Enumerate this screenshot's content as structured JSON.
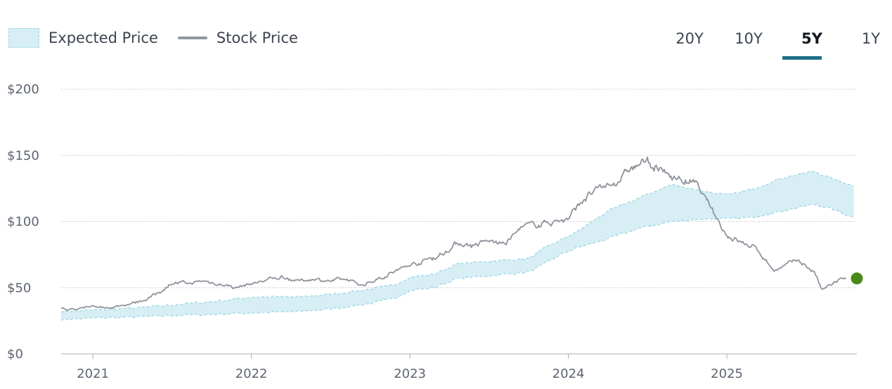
{
  "legend": {
    "expected_label": "Expected Price",
    "stock_label": "Stock Price"
  },
  "range_tabs": [
    "20Y",
    "10Y",
    "5Y",
    "1Y"
  ],
  "active_range": "5Y",
  "colors": {
    "band_fill": "#d6eef4",
    "band_edge": "#9dd6e3",
    "stock_line": "#8f949c",
    "grid": "#c9ccd1",
    "current_marker": "#4a8a1c",
    "tab_underline": "#1d6f86"
  },
  "chart_data": {
    "type": "area",
    "title": "",
    "xlabel": "",
    "ylabel": "",
    "x_range": [
      2020.8,
      2025.82
    ],
    "ylim": [
      0,
      200
    ],
    "y_ticks": [
      0,
      50,
      100,
      150,
      200
    ],
    "y_tick_labels": [
      "$0",
      "$50",
      "$100",
      "$150",
      "$200"
    ],
    "x_ticks": [
      2021,
      2022,
      2023,
      2024,
      2025
    ],
    "x_tick_labels": [
      "2021",
      "2022",
      "2023",
      "2024",
      "2025"
    ],
    "grid": true,
    "legend_position": "top-left",
    "series": [
      {
        "name": "Expected Price",
        "kind": "band",
        "x": [
          2020.8,
          2021.0,
          2021.3,
          2021.5,
          2021.8,
          2022.0,
          2022.3,
          2022.5,
          2022.75,
          2022.9,
          2023.0,
          2023.15,
          2023.3,
          2023.5,
          2023.75,
          2023.85,
          2023.95,
          2024.05,
          2024.25,
          2024.45,
          2024.65,
          2024.85,
          2025.0,
          2025.15,
          2025.35,
          2025.55,
          2025.65,
          2025.8
        ],
        "lower": [
          26,
          27,
          28,
          29,
          30,
          31,
          32,
          34,
          38,
          42,
          48,
          50,
          57,
          59,
          62,
          68,
          75,
          80,
          87,
          95,
          100,
          102,
          102,
          103,
          108,
          113,
          110,
          103
        ],
        "upper": [
          32,
          33,
          35,
          37,
          40,
          43,
          43,
          45,
          49,
          52,
          58,
          60,
          68,
          70,
          72,
          80,
          86,
          92,
          108,
          118,
          128,
          123,
          120,
          124,
          133,
          138,
          133,
          127
        ]
      },
      {
        "name": "Stock Price",
        "kind": "line",
        "x": [
          2020.8,
          2020.9,
          2021.0,
          2021.1,
          2021.2,
          2021.3,
          2021.4,
          2021.5,
          2021.6,
          2021.7,
          2021.8,
          2021.9,
          2022.0,
          2022.1,
          2022.2,
          2022.3,
          2022.4,
          2022.5,
          2022.6,
          2022.7,
          2022.8,
          2022.9,
          2023.0,
          2023.1,
          2023.2,
          2023.3,
          2023.4,
          2023.5,
          2023.6,
          2023.7,
          2023.8,
          2023.9,
          2024.0,
          2024.1,
          2024.2,
          2024.3,
          2024.4,
          2024.5,
          2024.6,
          2024.7,
          2024.8,
          2024.9,
          2025.0,
          2025.1,
          2025.2,
          2025.3,
          2025.4,
          2025.45,
          2025.55,
          2025.6,
          2025.7,
          2025.75
        ],
        "values": [
          35,
          33,
          36,
          35,
          37,
          40,
          45,
          54,
          53,
          55,
          53,
          50,
          53,
          56,
          58,
          55,
          57,
          55,
          56,
          52,
          57,
          62,
          67,
          71,
          75,
          84,
          82,
          85,
          83,
          95,
          98,
          100,
          102,
          118,
          124,
          130,
          140,
          145,
          137,
          132,
          128,
          110,
          90,
          84,
          78,
          63,
          68,
          71,
          62,
          48,
          55,
          57
        ]
      }
    ],
    "current_price": {
      "x": 2025.82,
      "value": 57
    }
  }
}
